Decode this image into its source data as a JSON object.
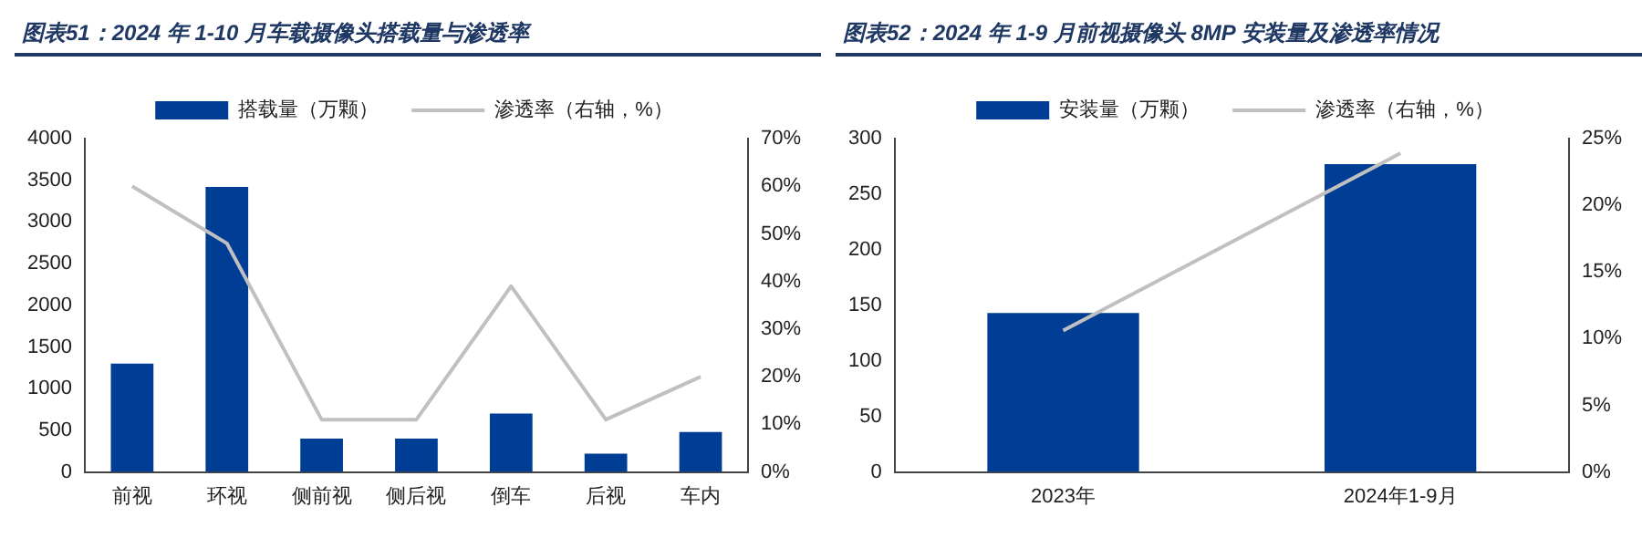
{
  "chart_data": [
    {
      "type": "bar",
      "title": "图表51：2024 年 1-10 月车载摄像头搭载量与渗透率",
      "categories": [
        "前视",
        "环视",
        "侧前视",
        "侧后视",
        "倒车",
        "后视",
        "车内"
      ],
      "series": [
        {
          "name": "搭载量（万颗）",
          "color": "#003e95",
          "values": [
            1300,
            3420,
            400,
            400,
            700,
            220,
            480
          ]
        },
        {
          "name": "渗透率（右轴，%）",
          "type": "line",
          "axis": "y2",
          "color": "#c0c0c0",
          "values": [
            60,
            48,
            11,
            11,
            39,
            11,
            20
          ]
        }
      ],
      "ylim": [
        0,
        4000
      ],
      "yticks": [
        0,
        500,
        1000,
        1500,
        2000,
        2500,
        3000,
        3500,
        4000
      ],
      "y2lim": [
        0,
        70
      ],
      "y2ticks": [
        {
          "value": 0,
          "label": "0%"
        },
        {
          "value": 10,
          "label": "10%"
        },
        {
          "value": 20,
          "label": "20%"
        },
        {
          "value": 30,
          "label": "30%"
        },
        {
          "value": 40,
          "label": "40%"
        },
        {
          "value": 50,
          "label": "50%"
        },
        {
          "value": 60,
          "label": "60%"
        },
        {
          "value": 70,
          "label": "70%"
        }
      ],
      "grid": false,
      "legend": "top",
      "marker": "none"
    },
    {
      "type": "bar",
      "title": "图表52：2024 年 1-9 月前视摄像头 8MP 安装量及渗透率情况",
      "categories": [
        "2023年",
        "2024年1-9月"
      ],
      "series": [
        {
          "name": "安装量（万颗）",
          "color": "#003e95",
          "values": [
            143,
            277
          ]
        },
        {
          "name": "渗透率（右轴，%）",
          "type": "line",
          "axis": "y2",
          "color": "#c0c0c0",
          "values": [
            10.6,
            23.9
          ]
        }
      ],
      "ylim": [
        0,
        300
      ],
      "yticks": [
        0,
        50,
        100,
        150,
        200,
        250,
        300
      ],
      "y2lim": [
        0,
        25
      ],
      "y2ticks": [
        {
          "value": 0,
          "label": "0%"
        },
        {
          "value": 5,
          "label": "5%"
        },
        {
          "value": 10,
          "label": "10%"
        },
        {
          "value": 15,
          "label": "15%"
        },
        {
          "value": 20,
          "label": "20%"
        },
        {
          "value": 25,
          "label": "25%"
        }
      ],
      "grid": false,
      "legend": "top",
      "marker": "none"
    }
  ]
}
